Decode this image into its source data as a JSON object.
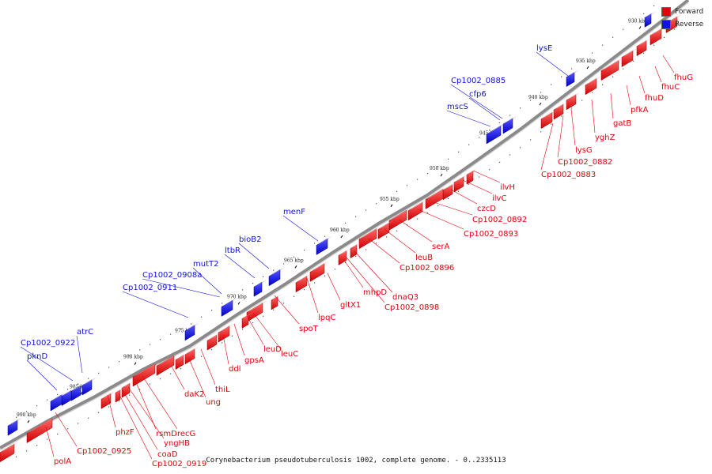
{
  "colors": {
    "forward": "#e8000b",
    "reverse": "#1010e8",
    "backbone": "#8a8a8a",
    "forward_leader": "#e8000b",
    "reverse_leader": "#1010e8"
  },
  "legend": [
    {
      "label": "Forward",
      "color": "#e8000b"
    },
    {
      "label": "Reverse",
      "color": "#1010e8"
    }
  ],
  "caption": "Corynebacterium pseudotuberculosis 1002, complete genome. - 0..2335113",
  "ticks": [
    "930 kbp",
    "935 kbp",
    "940 kbp",
    "945 kbp",
    "950 kbp",
    "955 kbp",
    "960 kbp",
    "965 kbp",
    "970 kbp",
    "975 kbp",
    "980 kbp",
    "985 kbp",
    "990 kbp"
  ],
  "forward_labels": [
    "fhuG",
    "fhuC",
    "fhuD",
    "pfkA",
    "gatB",
    "yghZ",
    "lysG",
    "Cp1002_0882",
    "Cp1002_0883",
    "ilvH",
    "ilvC",
    "czcD",
    "Cp1002_0892",
    "Cp1002_0893",
    "serA",
    "leuB",
    "Cp1002_0896",
    "dnaQ3",
    "Cp1002_0898",
    "mhpD",
    "gltX1",
    "lpqC",
    "spoT",
    "leuC",
    "leuD",
    "gpsA",
    "ddl",
    "thiL",
    "ung",
    "daK2",
    "recG",
    "rsmD",
    "yngHB",
    "coaD",
    "Cp1002_0919",
    "phzF",
    "Cp1002_0925",
    "polA"
  ],
  "reverse_labels": [
    "lysE",
    "Cp1002_0885",
    "cfp6",
    "mscS",
    "menF",
    "bioB2",
    "ltbR",
    "mutT2",
    "Cp1002_0908a",
    "Cp1002_0911",
    "atrC",
    "Cp1002_0922",
    "pknD"
  ]
}
